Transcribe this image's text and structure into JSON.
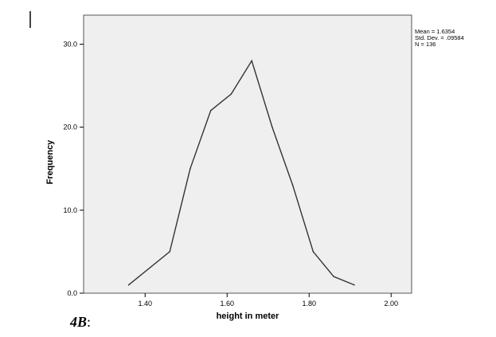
{
  "chart_data": {
    "type": "line",
    "title": "",
    "xlabel": "height in meter",
    "ylabel": "Frequency",
    "x_ticks": [
      1.4,
      1.6,
      1.8,
      2.0
    ],
    "x_tick_labels": [
      "1.40",
      "1.60",
      "1.80",
      "2.00"
    ],
    "y_ticks": [
      0,
      10,
      20,
      30
    ],
    "y_tick_labels": [
      "0.0",
      "10.0",
      "20.0",
      "30.0"
    ],
    "xlim": [
      1.25,
      2.05
    ],
    "ylim": [
      0,
      33.5
    ],
    "grid": false,
    "series": [
      {
        "x": [
          1.36,
          1.46,
          1.51,
          1.56,
          1.61,
          1.66,
          1.71,
          1.76,
          1.81,
          1.86,
          1.91
        ],
        "values": [
          1,
          5,
          15,
          22,
          24,
          28,
          20,
          13,
          5,
          2,
          1
        ]
      }
    ],
    "stats": {
      "mean": "Mean = 1.6354",
      "std": "Std. Dev. = .09584",
      "n": "N = 136"
    },
    "colors": {
      "plot_bg": "#efefef",
      "line": "#333333",
      "frame": "#555555"
    }
  },
  "caption": {
    "main": "4B",
    "suffix": ":"
  }
}
